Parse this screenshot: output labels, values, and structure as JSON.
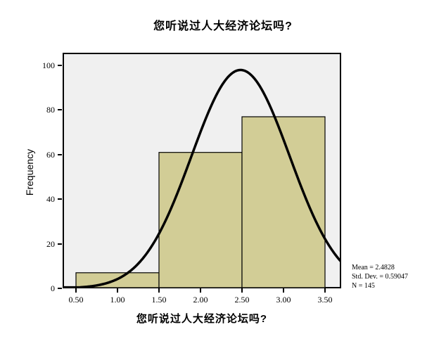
{
  "chart_data": {
    "type": "histogram",
    "title": "您听说过人大经济论坛吗?",
    "xlabel": "您听说过人大经济论坛吗?",
    "ylabel": "Frequency",
    "bins": [
      {
        "x0": 0.5,
        "x1": 1.5,
        "count": 7
      },
      {
        "x0": 1.5,
        "x1": 2.5,
        "count": 61
      },
      {
        "x0": 2.5,
        "x1": 3.5,
        "count": 77
      }
    ],
    "x_ticks": [
      {
        "value": 0.5,
        "label": "0.50"
      },
      {
        "value": 1.0,
        "label": "1.00"
      },
      {
        "value": 1.5,
        "label": "1.50"
      },
      {
        "value": 2.0,
        "label": "2.00"
      },
      {
        "value": 2.5,
        "label": "2.50"
      },
      {
        "value": 3.0,
        "label": "3.00"
      },
      {
        "value": 3.5,
        "label": "3.50"
      }
    ],
    "y_ticks": [
      {
        "value": 0,
        "label": "0"
      },
      {
        "value": 20,
        "label": "20"
      },
      {
        "value": 40,
        "label": "40"
      },
      {
        "value": 60,
        "label": "60"
      },
      {
        "value": 80,
        "label": "80"
      },
      {
        "value": 100,
        "label": "100"
      }
    ],
    "x_range": [
      0.339,
      3.695
    ],
    "y_range": [
      0,
      105.7
    ],
    "grid": false,
    "normal_curve": {
      "mean": 2.4828,
      "std_dev": 0.59047,
      "n": 145,
      "bin_width": 1
    },
    "stats_legend": {
      "lines": [
        "Mean = 2.4828",
        "Std. Dev. = 0.59047",
        "N = 145"
      ]
    },
    "colors": {
      "bar_fill": "#d2cd96",
      "bar_stroke": "#000000",
      "plot_bg": "#f0f0f0",
      "curve": "#000000",
      "page_bg": "#ffffff"
    }
  }
}
